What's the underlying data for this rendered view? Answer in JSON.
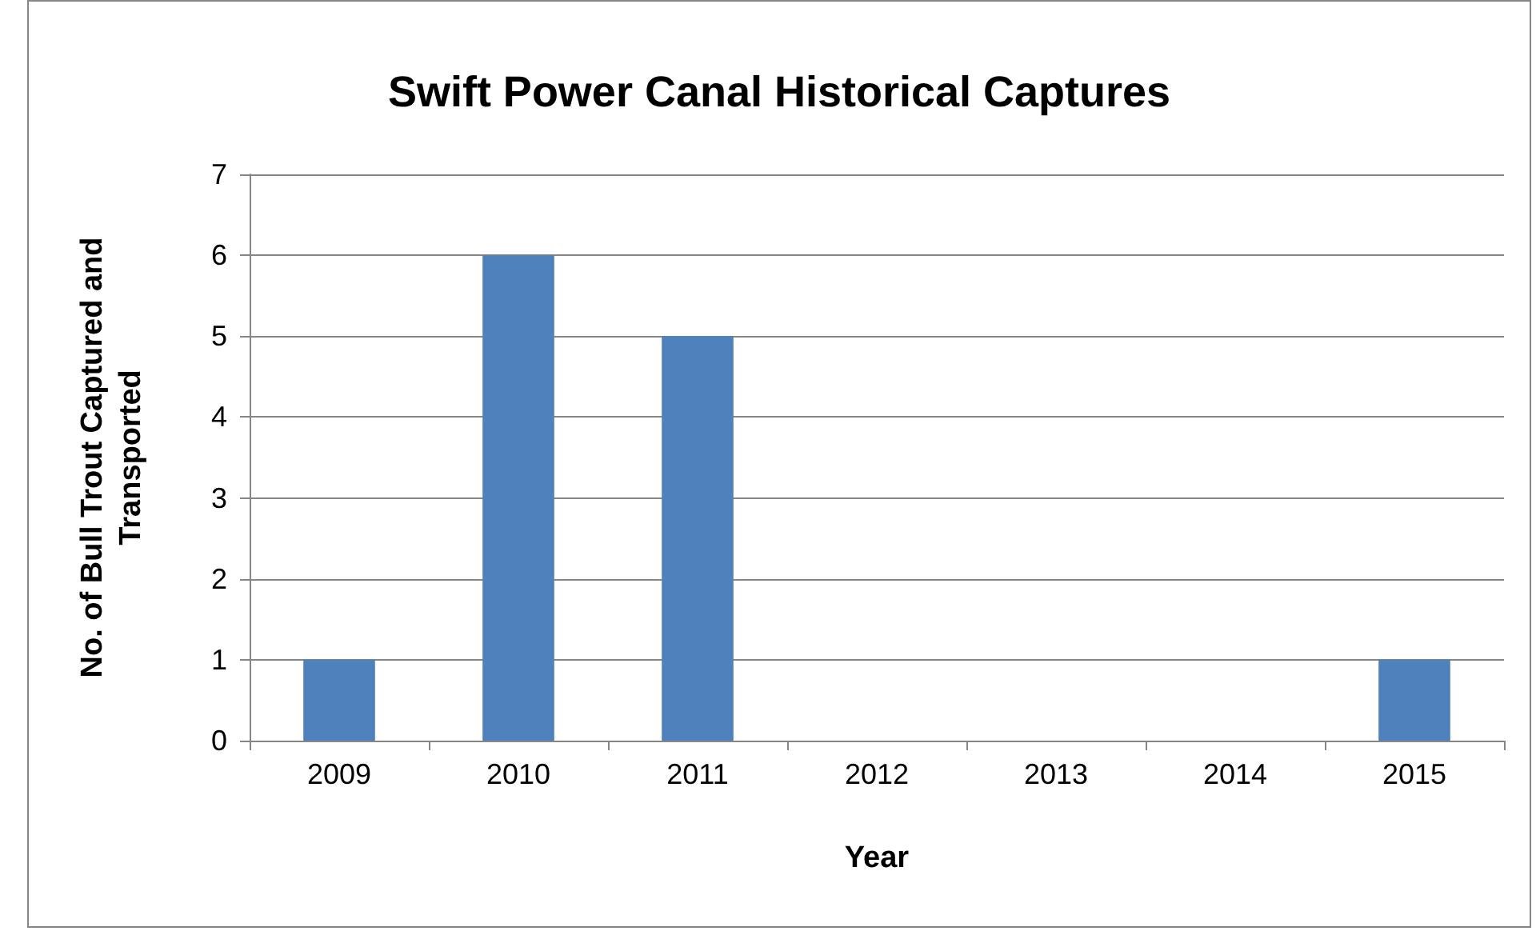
{
  "chart_data": {
    "type": "bar",
    "title": "Swift Power Canal Historical Captures",
    "xlabel": "Year",
    "ylabel": "No. of Bull Trout Captured and Transported",
    "categories": [
      "2009",
      "2010",
      "2011",
      "2012",
      "2013",
      "2014",
      "2015"
    ],
    "values": [
      1,
      6,
      5,
      0,
      0,
      0,
      1
    ],
    "color": "#4f81bd",
    "ylim": [
      0,
      7
    ],
    "yticks": [
      0,
      1,
      2,
      3,
      4,
      5,
      6,
      7
    ],
    "grid": "y"
  }
}
